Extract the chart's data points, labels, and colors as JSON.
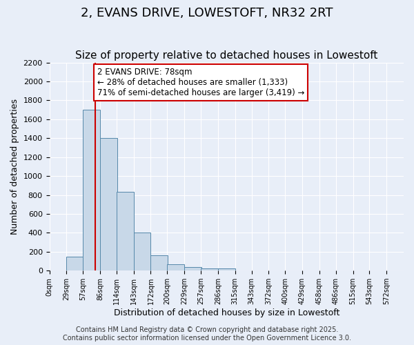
{
  "title": "2, EVANS DRIVE, LOWESTOFT, NR32 2RT",
  "subtitle": "Size of property relative to detached houses in Lowestoft",
  "xlabel": "Distribution of detached houses by size in Lowestoft",
  "ylabel": "Number of detached properties",
  "bin_edges": [
    0,
    29,
    57,
    86,
    114,
    143,
    172,
    200,
    229,
    257,
    286,
    315,
    343,
    372,
    400,
    429,
    458,
    486,
    515,
    543,
    572
  ],
  "bar_heights": [
    0,
    150,
    1700,
    1400,
    830,
    400,
    160,
    65,
    35,
    20,
    20,
    0,
    0,
    0,
    0,
    0,
    0,
    0,
    0,
    0
  ],
  "bar_color": "#c8d8e8",
  "bar_edgecolor": "#5588aa",
  "property_size": 78,
  "vline_color": "#cc0000",
  "annotation_text": "2 EVANS DRIVE: 78sqm\n← 28% of detached houses are smaller (1,333)\n71% of semi-detached houses are larger (3,419) →",
  "annotation_box_edgecolor": "#cc0000",
  "annotation_box_facecolor": "#ffffff",
  "ylim": [
    0,
    2200
  ],
  "yticks": [
    0,
    200,
    400,
    600,
    800,
    1000,
    1200,
    1400,
    1600,
    1800,
    2000,
    2200
  ],
  "tick_labels": [
    "0sqm",
    "29sqm",
    "57sqm",
    "86sqm",
    "114sqm",
    "143sqm",
    "172sqm",
    "200sqm",
    "229sqm",
    "257sqm",
    "286sqm",
    "315sqm",
    "343sqm",
    "372sqm",
    "400sqm",
    "429sqm",
    "458sqm",
    "486sqm",
    "515sqm",
    "543sqm",
    "572sqm"
  ],
  "background_color": "#e8eef8",
  "footer_line1": "Contains HM Land Registry data © Crown copyright and database right 2025.",
  "footer_line2": "Contains public sector information licensed under the Open Government Licence 3.0.",
  "title_fontsize": 13,
  "subtitle_fontsize": 11,
  "axis_fontsize": 9,
  "tick_fontsize": 8,
  "footer_fontsize": 7
}
